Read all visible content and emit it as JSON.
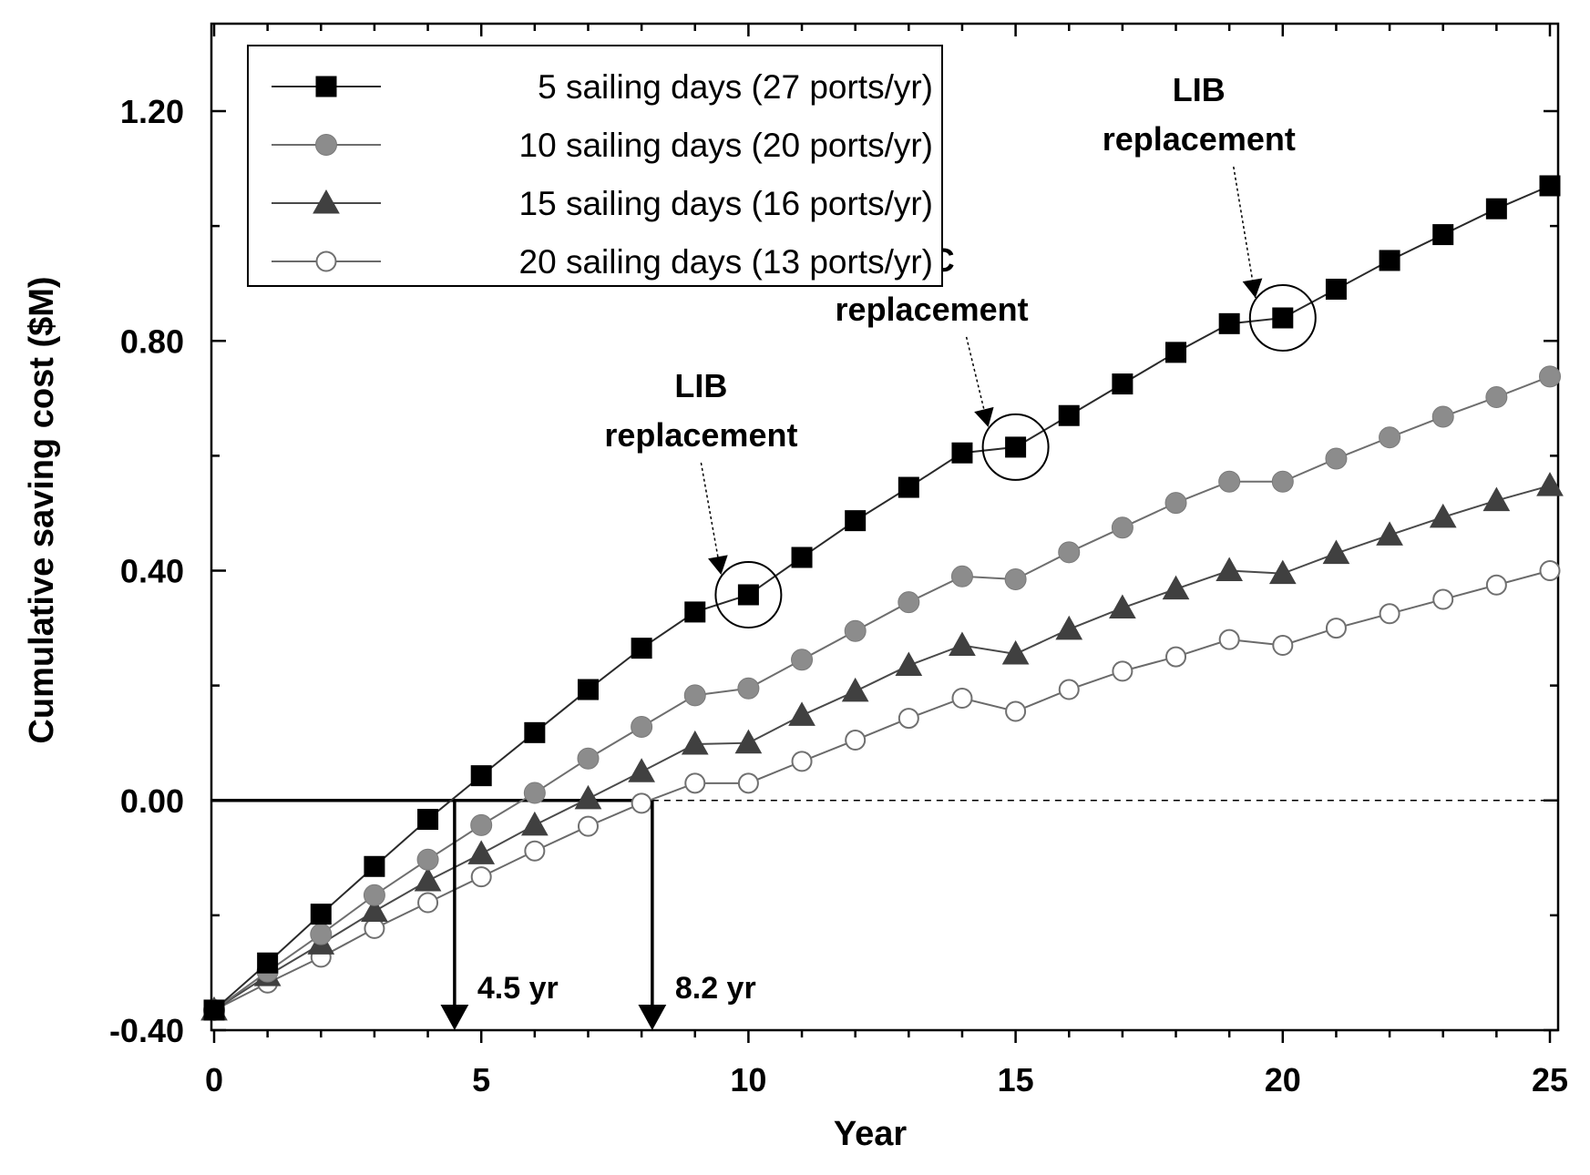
{
  "chart_data": {
    "type": "line",
    "xlabel": "Year",
    "ylabel": "Cumulative saving cost ($M)",
    "xlim": [
      0,
      25
    ],
    "ylim": [
      -0.4,
      1.35
    ],
    "x_ticks": [
      0,
      5,
      10,
      15,
      20,
      25
    ],
    "x_tick_labels": [
      "0",
      "5",
      "10",
      "15",
      "20",
      "25"
    ],
    "y_ticks": [
      -0.4,
      0.0,
      0.4,
      0.8,
      1.2
    ],
    "y_tick_labels": [
      "-0.40",
      "0.00",
      "0.40",
      "0.80",
      "1.20"
    ],
    "legend_position": "top-left",
    "x": [
      0,
      1,
      2,
      3,
      4,
      5,
      6,
      7,
      8,
      9,
      10,
      11,
      12,
      13,
      14,
      15,
      16,
      17,
      18,
      19,
      20,
      21,
      22,
      23,
      24,
      25
    ],
    "series": [
      {
        "name": "5 sailing days (27 ports/yr)",
        "marker": "square-filled",
        "color": "#000000",
        "values": [
          -0.365,
          -0.283,
          -0.198,
          -0.115,
          -0.033,
          0.043,
          0.118,
          0.193,
          0.265,
          0.328,
          0.358,
          0.423,
          0.487,
          0.545,
          0.605,
          0.615,
          0.67,
          0.725,
          0.78,
          0.83,
          0.84,
          0.89,
          0.94,
          0.985,
          1.03,
          1.07
        ]
      },
      {
        "name": "10 sailing days (20 ports/yr)",
        "marker": "circle-gray",
        "color": "#8a8a8a",
        "values": [
          -0.365,
          -0.298,
          -0.233,
          -0.165,
          -0.103,
          -0.043,
          0.013,
          0.073,
          0.128,
          0.183,
          0.195,
          0.245,
          0.295,
          0.345,
          0.39,
          0.385,
          0.432,
          0.475,
          0.518,
          0.555,
          0.555,
          0.595,
          0.632,
          0.668,
          0.702,
          0.738
        ]
      },
      {
        "name": "15 sailing days (16 ports/yr)",
        "marker": "triangle-filled",
        "color": "#404040",
        "values": [
          -0.365,
          -0.305,
          -0.25,
          -0.193,
          -0.14,
          -0.093,
          -0.043,
          0.003,
          0.05,
          0.098,
          0.1,
          0.148,
          0.19,
          0.235,
          0.27,
          0.255,
          0.298,
          0.335,
          0.368,
          0.4,
          0.395,
          0.43,
          0.462,
          0.493,
          0.522,
          0.548
        ]
      },
      {
        "name": "20 sailing days (13 ports/yr)",
        "marker": "circle-open",
        "color": "#ffffff",
        "values": [
          -0.365,
          -0.318,
          -0.273,
          -0.223,
          -0.178,
          -0.133,
          -0.088,
          -0.045,
          -0.005,
          0.03,
          0.03,
          0.068,
          0.105,
          0.143,
          0.178,
          0.155,
          0.193,
          0.225,
          0.25,
          0.28,
          0.27,
          0.3,
          0.325,
          0.35,
          0.375,
          0.4
        ]
      }
    ],
    "annotations": [
      {
        "line1": "LIB",
        "line2": "replacement",
        "at_x": 10,
        "series": 0
      },
      {
        "line1": "SC",
        "line2": "replacement",
        "at_x": 15,
        "series": 0
      },
      {
        "line1": "LIB",
        "line2": "replacement",
        "at_x": 20,
        "series": 0
      }
    ],
    "crossings": [
      {
        "x": 4.5,
        "label": "4.5 yr"
      },
      {
        "x": 8.2,
        "label": "8.2 yr"
      }
    ]
  }
}
